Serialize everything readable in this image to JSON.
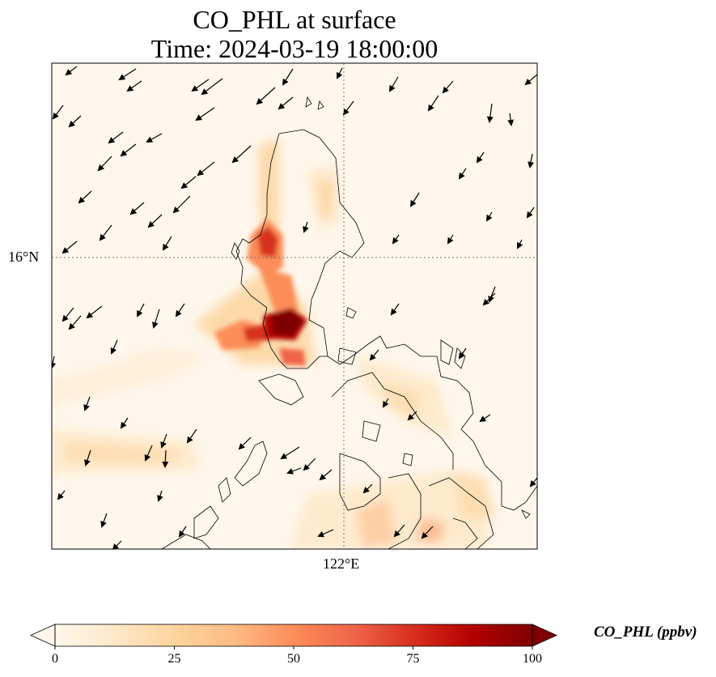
{
  "title": {
    "line1": "CO_PHL at surface",
    "line2": "Time: 2024-03-19 18:00:00"
  },
  "map": {
    "gridlines": {
      "lat": "16°N",
      "lon": "122°E"
    },
    "colormap": "OrRd"
  },
  "colorbar": {
    "label": "CO_PHL (ppbv)",
    "ticks": [
      "0",
      "25",
      "50",
      "75",
      "100"
    ],
    "min": 0,
    "max": 100,
    "colors": [
      "#fff7ec",
      "#fee8c8",
      "#fdd49e",
      "#fdbb84",
      "#fc8d59",
      "#ef6548",
      "#d7301f",
      "#b30000",
      "#7f0000"
    ]
  }
}
